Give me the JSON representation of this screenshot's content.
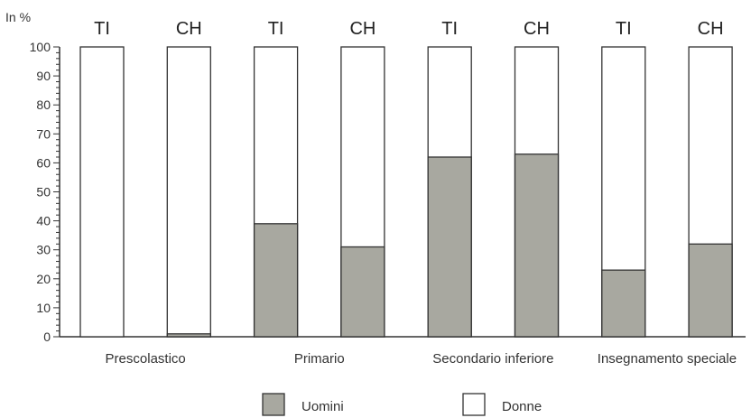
{
  "chart_data": {
    "type": "bar",
    "stacked": true,
    "ylabel": "In %",
    "ylim": [
      0,
      100
    ],
    "yticks": [
      0,
      10,
      20,
      30,
      40,
      50,
      60,
      70,
      80,
      90,
      100
    ],
    "groups": [
      "Prescolastico",
      "Primario",
      "Secondario inferiore",
      "Insegnamento speciale"
    ],
    "bars": [
      "TI",
      "CH",
      "TI",
      "CH",
      "TI",
      "CH",
      "TI",
      "CH"
    ],
    "series": [
      {
        "name": "Uomini",
        "color": "#a8a8a0",
        "values": [
          0,
          1,
          39,
          31,
          62,
          63,
          23,
          32
        ]
      },
      {
        "name": "Donne",
        "color": "#ffffff",
        "values": [
          100,
          99,
          61,
          69,
          38,
          37,
          77,
          68
        ]
      }
    ],
    "legend_position": "bottom"
  }
}
